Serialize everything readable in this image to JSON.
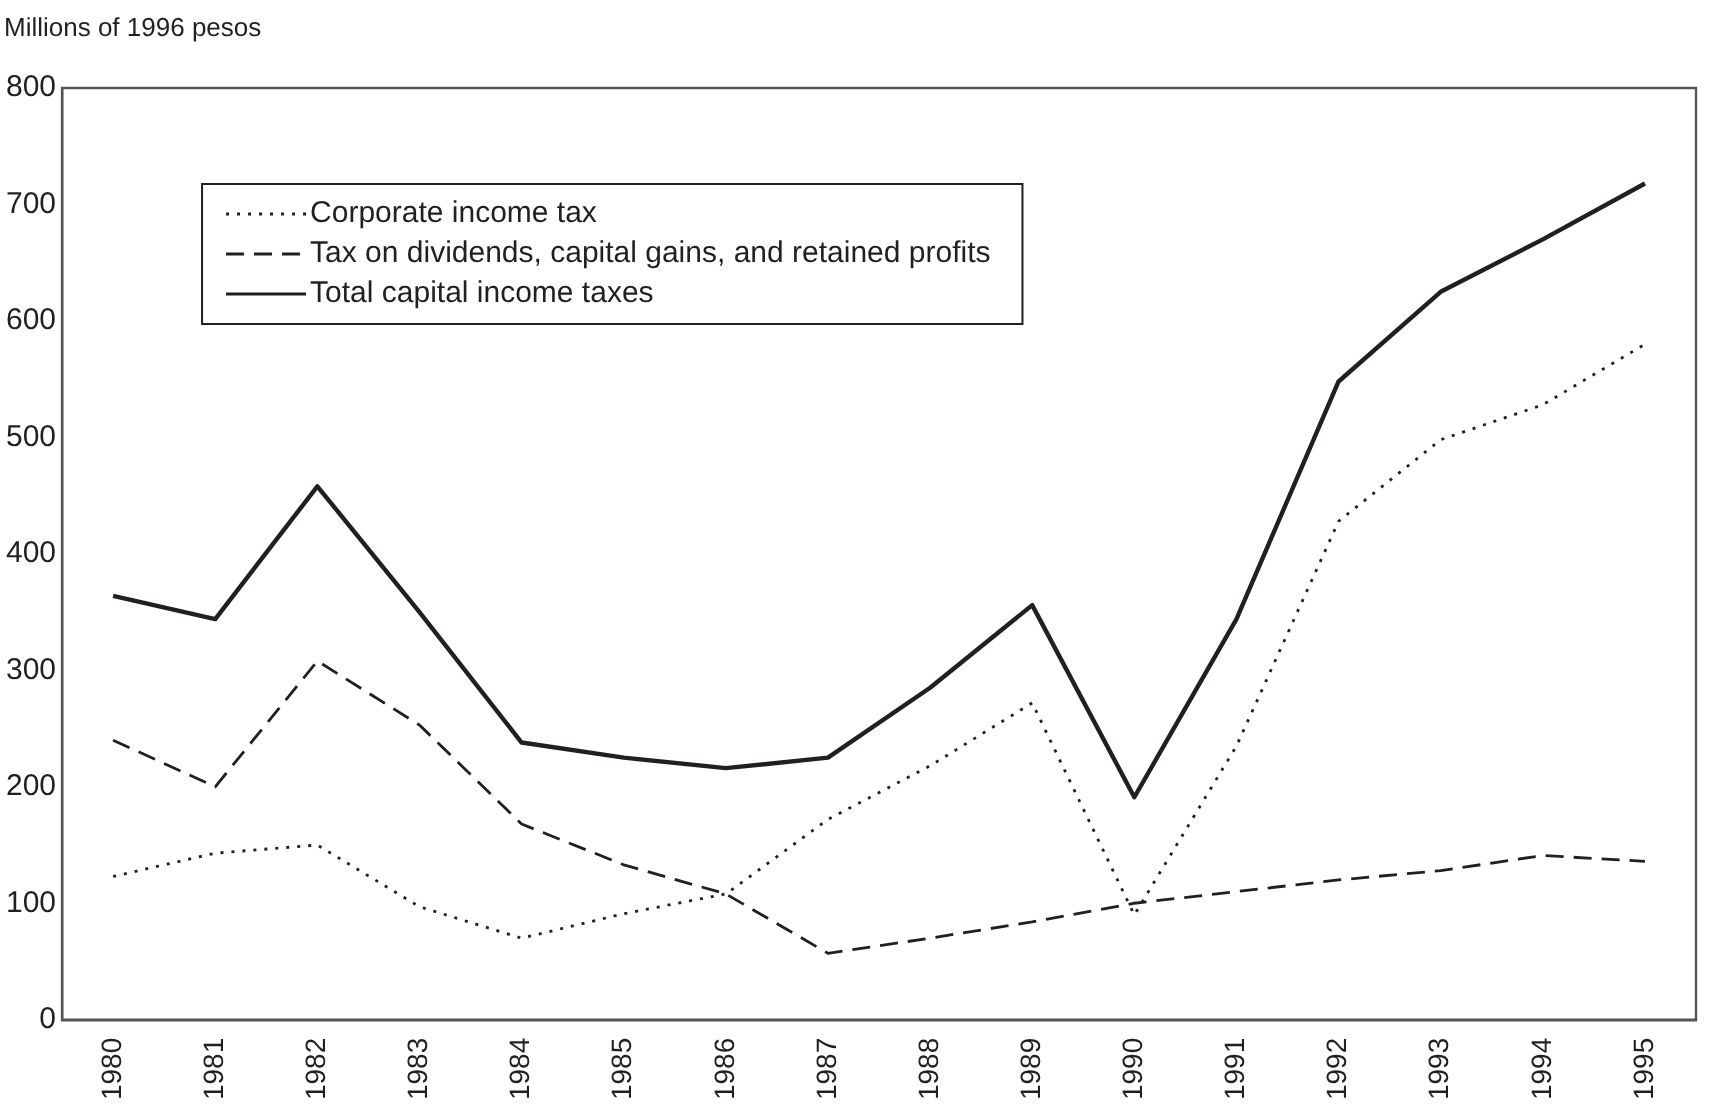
{
  "chart_data": {
    "type": "line",
    "ylabel": "Millions of 1996 pesos",
    "categories": [
      "1980",
      "1981",
      "1982",
      "1983",
      "1984",
      "1985",
      "1986",
      "1987",
      "1988",
      "1989",
      "1990",
      "1991",
      "1992",
      "1993",
      "1994",
      "1995"
    ],
    "series": [
      {
        "name": "Corporate income tax",
        "color": "#231f20",
        "line_style": "dotted",
        "values": [
          123,
          143,
          150,
          97,
          70,
          91,
          108,
          172,
          218,
          272,
          90,
          235,
          428,
          498,
          528,
          580
        ]
      },
      {
        "name": "Tax on dividends, capital gains, and retained profits",
        "color": "#231f20",
        "line_style": "dashed",
        "values": [
          240,
          200,
          308,
          253,
          168,
          133,
          108,
          57,
          70,
          84,
          100,
          110,
          120,
          128,
          141,
          136
        ]
      },
      {
        "name": "Total capital income taxes",
        "color": "#231f20",
        "line_style": "solid",
        "values": [
          364,
          344,
          458,
          350,
          238,
          225,
          216,
          225,
          285,
          356,
          191,
          344,
          548,
          625,
          670,
          718
        ]
      }
    ],
    "ylim": [
      0,
      800
    ],
    "yticks": [
      0,
      100,
      200,
      300,
      400,
      500,
      600,
      700,
      800
    ],
    "grid": false,
    "legend": "top left",
    "marker": "none"
  }
}
